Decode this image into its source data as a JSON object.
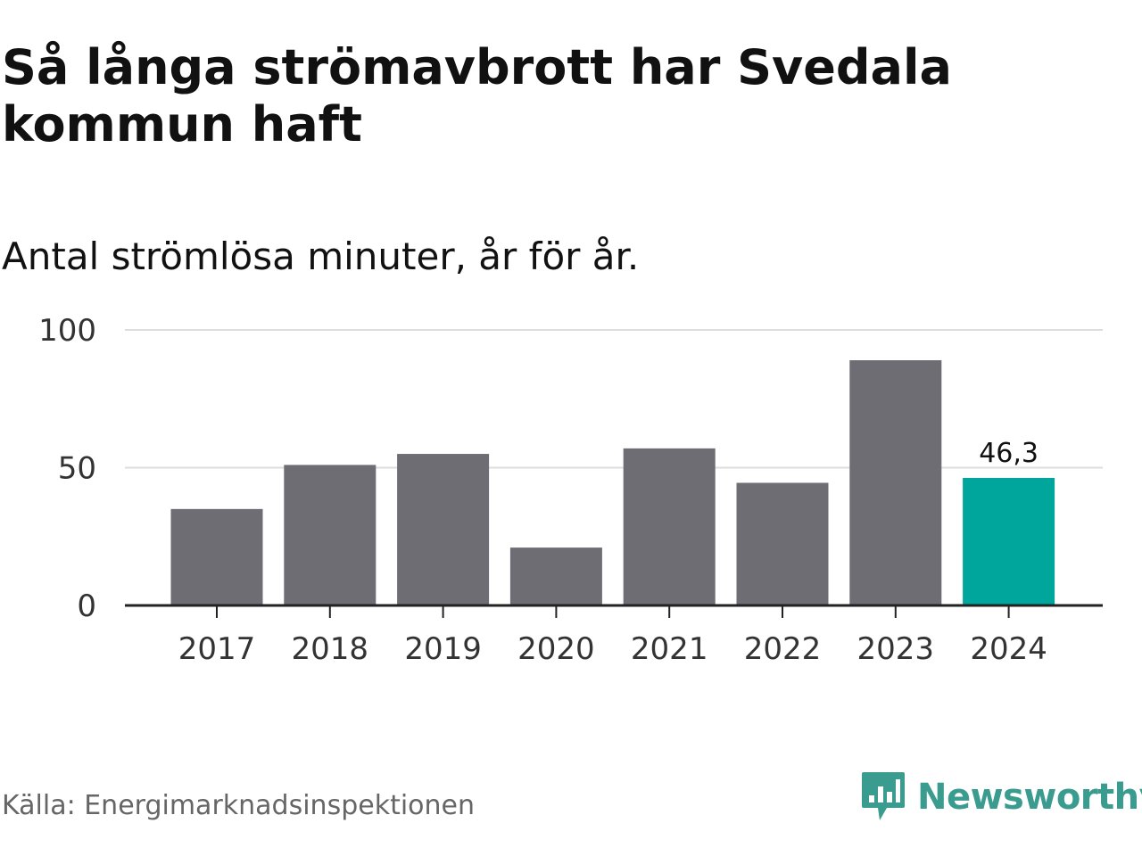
{
  "title": "Så långa strömavbrott har Svedala kommun haft",
  "subtitle": "Antal strömlösa minuter, år för år.",
  "source": "Källa: Energimarknadsinspektionen",
  "brand": {
    "name": "Newsworthy",
    "icon": "newsworthy-logo-icon"
  },
  "colors": {
    "bar": "#6e6d73",
    "highlight": "#00a69c",
    "grid": "#dddddd",
    "axis": "#222222",
    "brand": "#3a9b8f"
  },
  "chart_data": {
    "type": "bar",
    "title": "Så långa strömavbrott har Svedala kommun haft",
    "subtitle": "Antal strömlösa minuter, år för år.",
    "xlabel": "",
    "ylabel": "",
    "categories": [
      "2017",
      "2018",
      "2019",
      "2020",
      "2021",
      "2022",
      "2023",
      "2024"
    ],
    "values": [
      35,
      51,
      55,
      21,
      57,
      44.5,
      89,
      46.3
    ],
    "ylim": [
      0,
      100
    ],
    "yticks": [
      "0",
      "50",
      "100"
    ],
    "grid": true,
    "highlight_index": 7,
    "data_labels": [
      {
        "index": 7,
        "text": "46,3"
      }
    ]
  }
}
